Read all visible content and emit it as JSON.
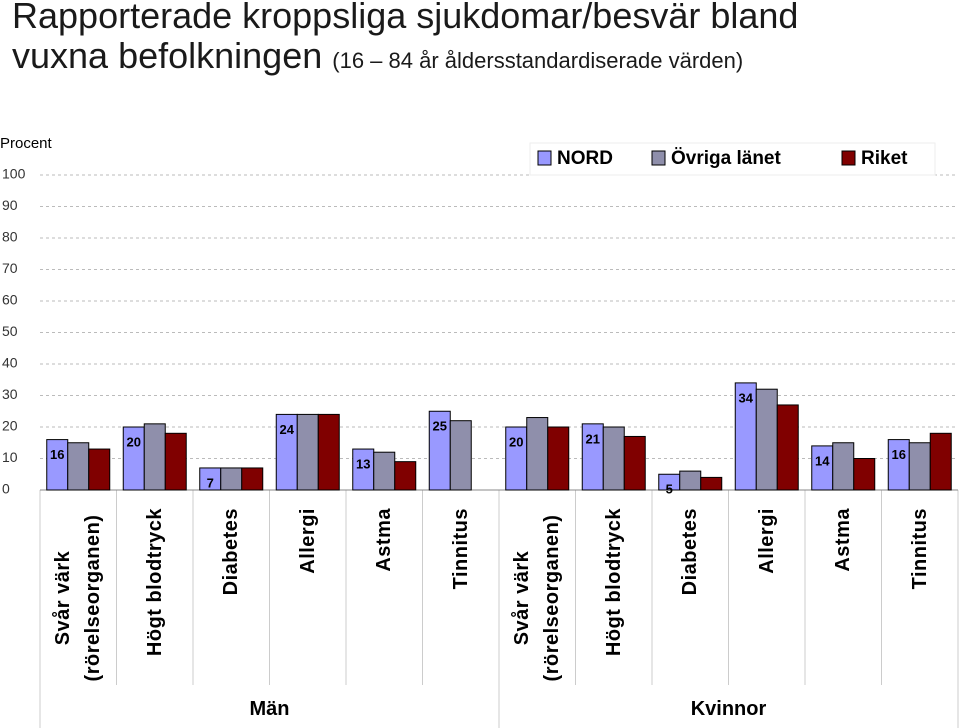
{
  "chart_data": {
    "type": "bar",
    "title": "Rapporterade kroppsliga sjukdomar/besvär bland vuxna befolkningen",
    "subtitle": "(16 – 84 år åldersstandardiserade värden)",
    "y_label": "Procent",
    "categories": [
      "Svår värk (rörelseorganen)",
      "Högt blodtryck",
      "Diabetes",
      "Allergi",
      "Astma",
      "Tinnitus",
      "Svår värk (rörelseorganen)",
      "Högt blodtryck",
      "Diabetes",
      "Allergi",
      "Astma",
      "Tinnitus"
    ],
    "groups": [
      "Män",
      "Kvinnor"
    ],
    "series": [
      {
        "name": "NORD",
        "color": "#9999ff",
        "values": [
          16,
          20,
          7,
          24,
          13,
          25,
          20,
          21,
          5,
          34,
          14,
          16
        ]
      },
      {
        "name": "Övriga  länet",
        "color": "#8f8fab",
        "values": [
          15,
          21,
          7,
          24,
          12,
          22,
          23,
          20,
          6,
          32,
          15,
          15
        ]
      },
      {
        "name": "Riket",
        "color": "#800000",
        "values": [
          13,
          18,
          7,
          24,
          9,
          null,
          20,
          17,
          4,
          27,
          10,
          18
        ]
      }
    ],
    "ylim": [
      0,
      100
    ],
    "yticks": [
      0,
      10,
      20,
      30,
      40,
      50,
      60,
      70,
      80,
      90,
      100
    ],
    "grid": true
  }
}
